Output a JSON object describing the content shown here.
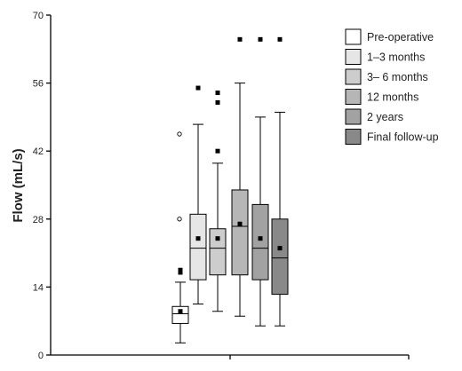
{
  "chart_data": {
    "type": "boxplot",
    "ylabel": "Flow (mL/s)",
    "ylim": [
      0,
      70
    ],
    "yticks": [
      "0",
      "14",
      "28",
      "42",
      "56",
      "70"
    ],
    "grid": false,
    "legend_position": "top-right",
    "series": [
      {
        "name": "Pre-operative",
        "color": "#ffffff",
        "min": 2.5,
        "q1": 6.5,
        "median": 8.5,
        "q3": 10,
        "max": 15,
        "mean": 9,
        "outliers": [
          17,
          17.5,
          28,
          45.5
        ]
      },
      {
        "name": "1–3 months",
        "color": "#e6e6e6",
        "min": 10.5,
        "q1": 15.5,
        "median": 22,
        "q3": 29,
        "max": 47.5,
        "mean": 24,
        "outliers": [
          55
        ]
      },
      {
        "name": "3– 6 months",
        "color": "#cdcdcd",
        "min": 9,
        "q1": 16.5,
        "median": 22,
        "q3": 26,
        "max": 39.5,
        "mean": 24,
        "outliers": [
          42,
          52,
          54
        ]
      },
      {
        "name": "12 months",
        "color": "#b6b6b6",
        "min": 8,
        "q1": 16.5,
        "median": 26.5,
        "q3": 34,
        "max": 56,
        "mean": 27,
        "outliers": [
          65
        ]
      },
      {
        "name": "2 years",
        "color": "#a2a2a2",
        "min": 6,
        "q1": 15.5,
        "median": 22,
        "q3": 31,
        "max": 49,
        "mean": 24,
        "outliers": [
          65
        ]
      },
      {
        "name": "Final follow-up",
        "color": "#898989",
        "min": 6,
        "q1": 12.5,
        "median": 20,
        "q3": 28,
        "max": 50,
        "mean": 22,
        "outliers": [
          65
        ]
      }
    ]
  }
}
